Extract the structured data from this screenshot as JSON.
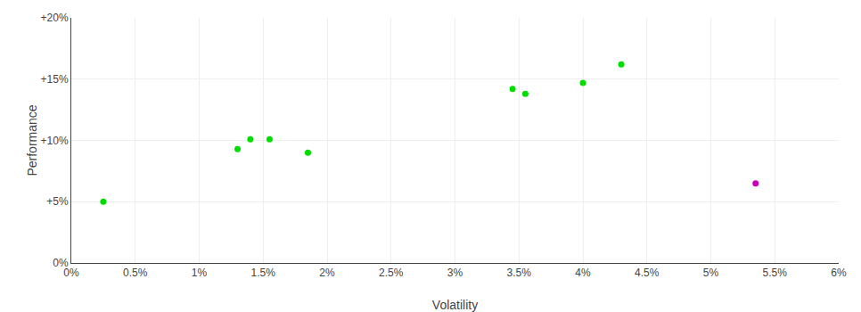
{
  "chart_data": {
    "type": "scatter",
    "xlabel": "Volatility",
    "ylabel": "Performance",
    "xlim": [
      0.0,
      0.06
    ],
    "ylim": [
      0.0,
      0.2
    ],
    "xticks": [
      {
        "value": 0.0,
        "label": "0%"
      },
      {
        "value": 0.005,
        "label": "0.5%"
      },
      {
        "value": 0.01,
        "label": "1%"
      },
      {
        "value": 0.015,
        "label": "1.5%"
      },
      {
        "value": 0.02,
        "label": "2%"
      },
      {
        "value": 0.025,
        "label": "2.5%"
      },
      {
        "value": 0.03,
        "label": "3%"
      },
      {
        "value": 0.035,
        "label": "3.5%"
      },
      {
        "value": 0.04,
        "label": "4%"
      },
      {
        "value": 0.045,
        "label": "4.5%"
      },
      {
        "value": 0.05,
        "label": "5%"
      },
      {
        "value": 0.055,
        "label": "5.5%"
      },
      {
        "value": 0.06,
        "label": "6%"
      }
    ],
    "yticks": [
      {
        "value": 0.0,
        "label": "0%"
      },
      {
        "value": 0.05,
        "label": "+5%"
      },
      {
        "value": 0.1,
        "label": "+10%"
      },
      {
        "value": 0.15,
        "label": "+15%"
      },
      {
        "value": 0.2,
        "label": "+20%"
      }
    ],
    "grid": true,
    "series": [
      {
        "color": "#00dd00",
        "x": [
          0.0025,
          0.013,
          0.014,
          0.0155,
          0.0185,
          0.0345,
          0.0355,
          0.04,
          0.043
        ],
        "values": [
          0.05,
          0.093,
          0.101,
          0.101,
          0.09,
          0.142,
          0.138,
          0.147,
          0.162
        ]
      },
      {
        "color": "#cc00bb",
        "x": [
          0.0535
        ],
        "values": [
          0.065
        ]
      }
    ]
  }
}
